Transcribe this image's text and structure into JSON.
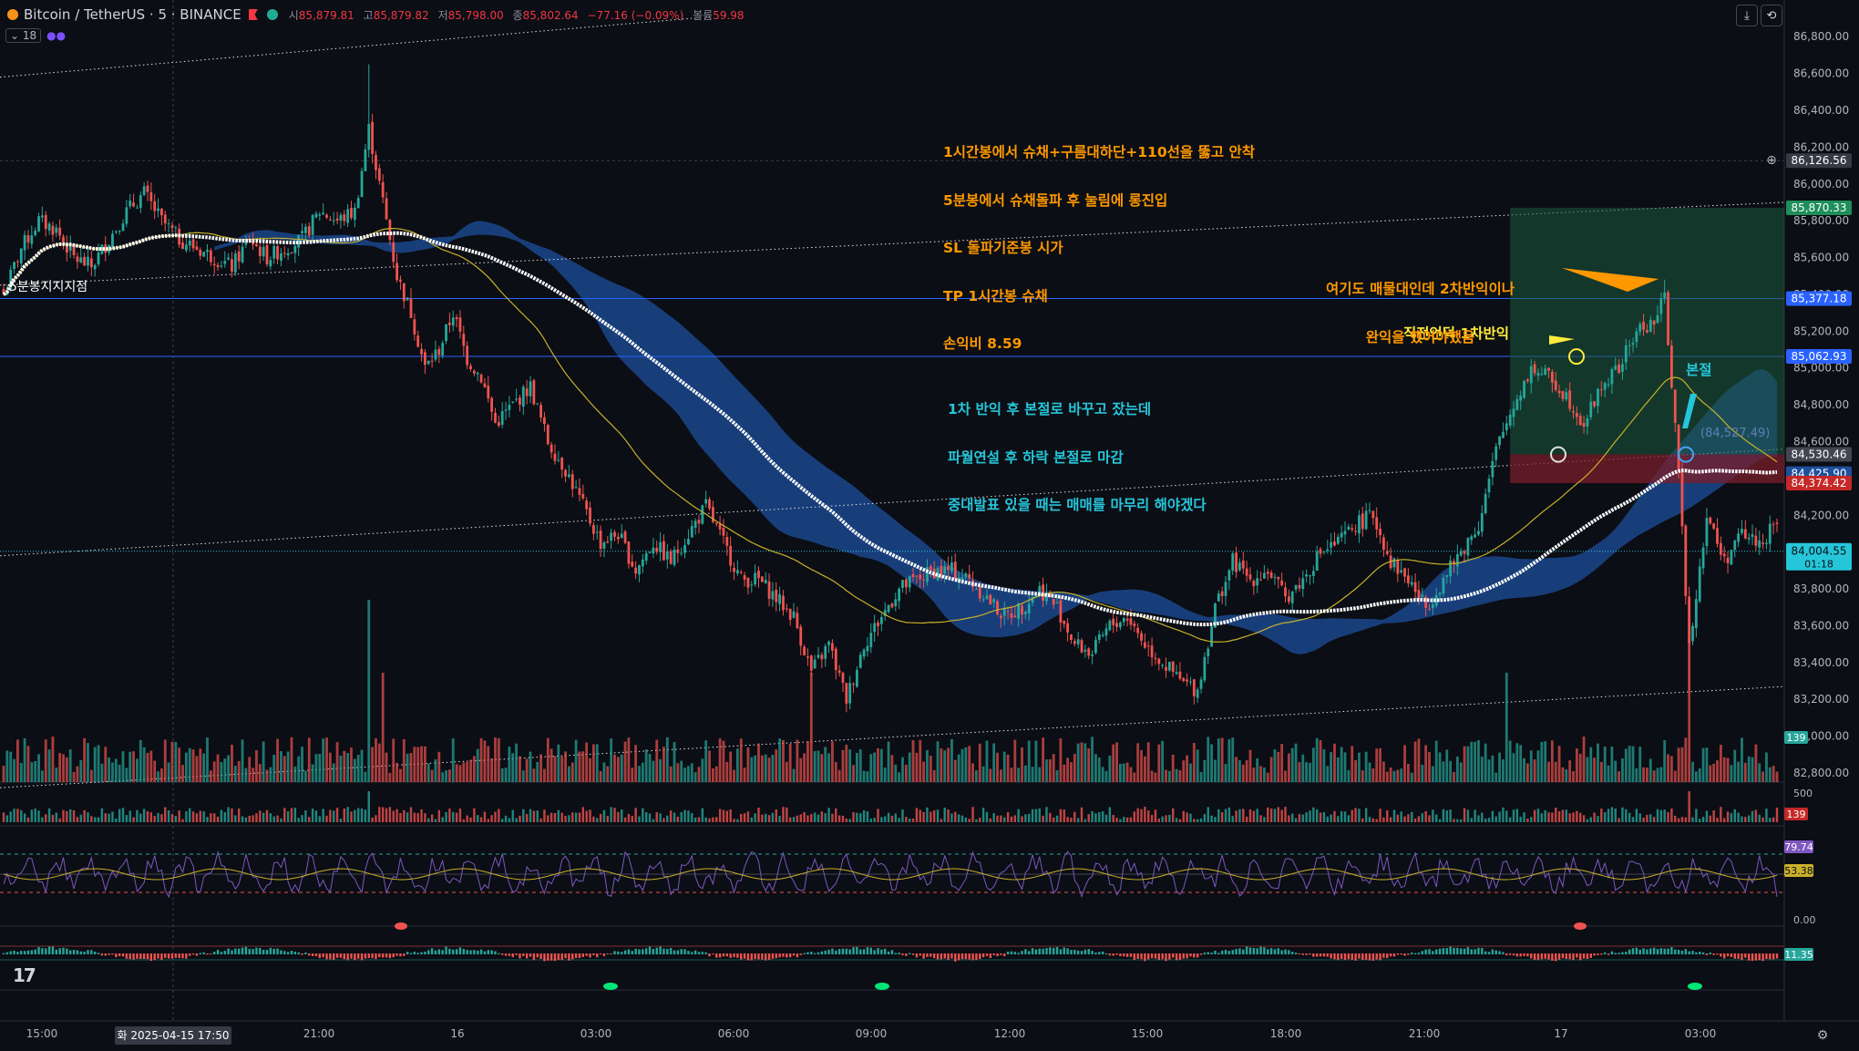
{
  "header": {
    "symbol": "Bitcoin / TetherUS · 5 · BINANCE",
    "open_label": "시",
    "open": "85,879.81",
    "high_label": "고",
    "high": "85,879.82",
    "low_label": "저",
    "low": "85,798.00",
    "close_label": "종",
    "close": "85,802.64",
    "change": "−77.16 (−0.09%)",
    "volume_label": "볼륨",
    "volume": "59.98",
    "indicator_count": "18"
  },
  "annotations": {
    "strategy": [
      "1시간봉에서 슈채+구름대하단+110선을 뚫고 안착",
      "5분봉에서 슈채돌파 후 눌림에 롱진입",
      "SL 돌파기준봉 시가",
      "TP 1시간봉 슈채",
      "손익비 8.59"
    ],
    "support_label": "5분봉지지지점",
    "note_left": [
      "1차 반익 후 본절로 바꾸고 잤는데",
      "파월연설 후 하락 본절로 마감",
      "중대발표 있을 때는 매매를 마무리 해야겠다"
    ],
    "note_first_half": "직전언덕 1차반익",
    "note_second": [
      "여기도 매물대인데 2차반익이나",
      "완익을 했어야했음"
    ],
    "note_breakeven": "본절",
    "entry_price_label": "(84,527.49)"
  },
  "colors": {
    "background": "#0b0e14",
    "up": "#26a69a",
    "down": "#ef5350",
    "cloud": "#1e4f9c",
    "ma_white": "#ffffff",
    "ma_yellow": "#c9b02a",
    "orange_text": "#ff9800",
    "yellow_text": "#ffeb3b",
    "cyan_text": "#26c6da",
    "tp_zone": "#1e5a3e",
    "sl_zone": "#7a1e2a"
  },
  "chart_data": {
    "type": "candlestick",
    "title": "Bitcoin / TetherUS · 5 · BINANCE",
    "ylim": [
      82800,
      86900
    ],
    "y_ticks": [
      "86,800.00",
      "86,600.00",
      "86,400.00",
      "86,200.00",
      "86,000.00",
      "85,800.00",
      "85,600.00",
      "85,400.00",
      "85,200.00",
      "85,000.00",
      "84,800.00",
      "84,600.00",
      "84,400.00",
      "84,200.00",
      "84,000.00",
      "83,800.00",
      "83,600.00",
      "83,400.00",
      "83,200.00",
      "83,000.00",
      "82,800.00"
    ],
    "x_ticks": [
      "15:00",
      "21:00",
      "16",
      "03:00",
      "06:00",
      "09:00",
      "12:00",
      "15:00",
      "18:00",
      "21:00",
      "17",
      "03:00"
    ],
    "crosshair_x_label": "화 2025-04-15   17:50",
    "crosshair_price_label": "86,126.56",
    "close_path": [
      [
        0,
        85400
      ],
      [
        5,
        85650
      ],
      [
        10,
        85800
      ],
      [
        15,
        85750
      ],
      [
        20,
        85600
      ],
      [
        25,
        85550
      ],
      [
        30,
        85700
      ],
      [
        35,
        85850
      ],
      [
        40,
        85950
      ],
      [
        45,
        85800
      ],
      [
        50,
        85700
      ],
      [
        55,
        85650
      ],
      [
        60,
        85600
      ],
      [
        65,
        85550
      ],
      [
        70,
        85700
      ],
      [
        75,
        85600
      ],
      [
        80,
        85650
      ],
      [
        85,
        85700
      ],
      [
        90,
        85850
      ],
      [
        95,
        85800
      ],
      [
        100,
        85850
      ],
      [
        104,
        86300
      ],
      [
        108,
        85900
      ],
      [
        112,
        85500
      ],
      [
        116,
        85300
      ],
      [
        120,
        85000
      ],
      [
        124,
        85100
      ],
      [
        128,
        85300
      ],
      [
        132,
        85050
      ],
      [
        136,
        84950
      ],
      [
        140,
        84700
      ],
      [
        145,
        84800
      ],
      [
        150,
        84900
      ],
      [
        155,
        84600
      ],
      [
        160,
        84450
      ],
      [
        165,
        84250
      ],
      [
        170,
        84050
      ],
      [
        175,
        84100
      ],
      [
        180,
        83900
      ],
      [
        185,
        84050
      ],
      [
        190,
        83950
      ],
      [
        195,
        84100
      ],
      [
        200,
        84250
      ],
      [
        205,
        84050
      ],
      [
        210,
        83850
      ],
      [
        215,
        83850
      ],
      [
        220,
        83750
      ],
      [
        225,
        83650
      ],
      [
        230,
        83350
      ],
      [
        235,
        83500
      ],
      [
        240,
        83200
      ],
      [
        245,
        83500
      ],
      [
        250,
        83650
      ],
      [
        255,
        83800
      ],
      [
        260,
        83850
      ],
      [
        265,
        83900
      ],
      [
        270,
        83900
      ],
      [
        275,
        83850
      ],
      [
        280,
        83750
      ],
      [
        285,
        83650
      ],
      [
        290,
        83700
      ],
      [
        295,
        83800
      ],
      [
        300,
        83700
      ],
      [
        305,
        83500
      ],
      [
        310,
        83450
      ],
      [
        315,
        83600
      ],
      [
        320,
        83650
      ],
      [
        325,
        83500
      ],
      [
        330,
        83400
      ],
      [
        335,
        83300
      ],
      [
        340,
        83250
      ],
      [
        345,
        83700
      ],
      [
        350,
        83950
      ],
      [
        355,
        83850
      ],
      [
        360,
        83900
      ],
      [
        365,
        83750
      ],
      [
        370,
        83850
      ],
      [
        375,
        84000
      ],
      [
        380,
        84050
      ],
      [
        385,
        84150
      ],
      [
        390,
        84200
      ],
      [
        395,
        83950
      ],
      [
        400,
        83850
      ],
      [
        405,
        83700
      ],
      [
        410,
        83850
      ],
      [
        415,
        84000
      ],
      [
        420,
        84150
      ],
      [
        425,
        84550
      ],
      [
        430,
        84800
      ],
      [
        435,
        85000
      ],
      [
        440,
        84950
      ],
      [
        445,
        84850
      ],
      [
        450,
        84700
      ],
      [
        455,
        84900
      ],
      [
        460,
        85000
      ],
      [
        465,
        85200
      ],
      [
        470,
        85250
      ],
      [
        473,
        85380
      ],
      [
        476,
        84700
      ],
      [
        480,
        83500
      ],
      [
        485,
        84200
      ],
      [
        490,
        83950
      ],
      [
        495,
        84100
      ],
      [
        500,
        84050
      ],
      [
        505,
        84150
      ]
    ],
    "n_candles": 506,
    "levels": [
      85377.18,
      85062.93,
      84530.46,
      84374.42,
      84004.55
    ],
    "right_labels": {
      "tp": "85,870.33",
      "line1": "85,377.18",
      "line2": "85,062.93",
      "entry": "84,530.46",
      "ma": "84,425.90",
      "sl": "84,374.42",
      "last": "84,004.55",
      "countdown": "01:18",
      "vol": "139"
    },
    "volume_panel": {
      "ylim": [
        0,
        500
      ],
      "tick": "500",
      "last": "139"
    },
    "rsi_panel": {
      "upper": "79.74",
      "mid": "53.38",
      "zero": "0.00"
    },
    "osc_panel": {
      "value": "11.35"
    }
  }
}
